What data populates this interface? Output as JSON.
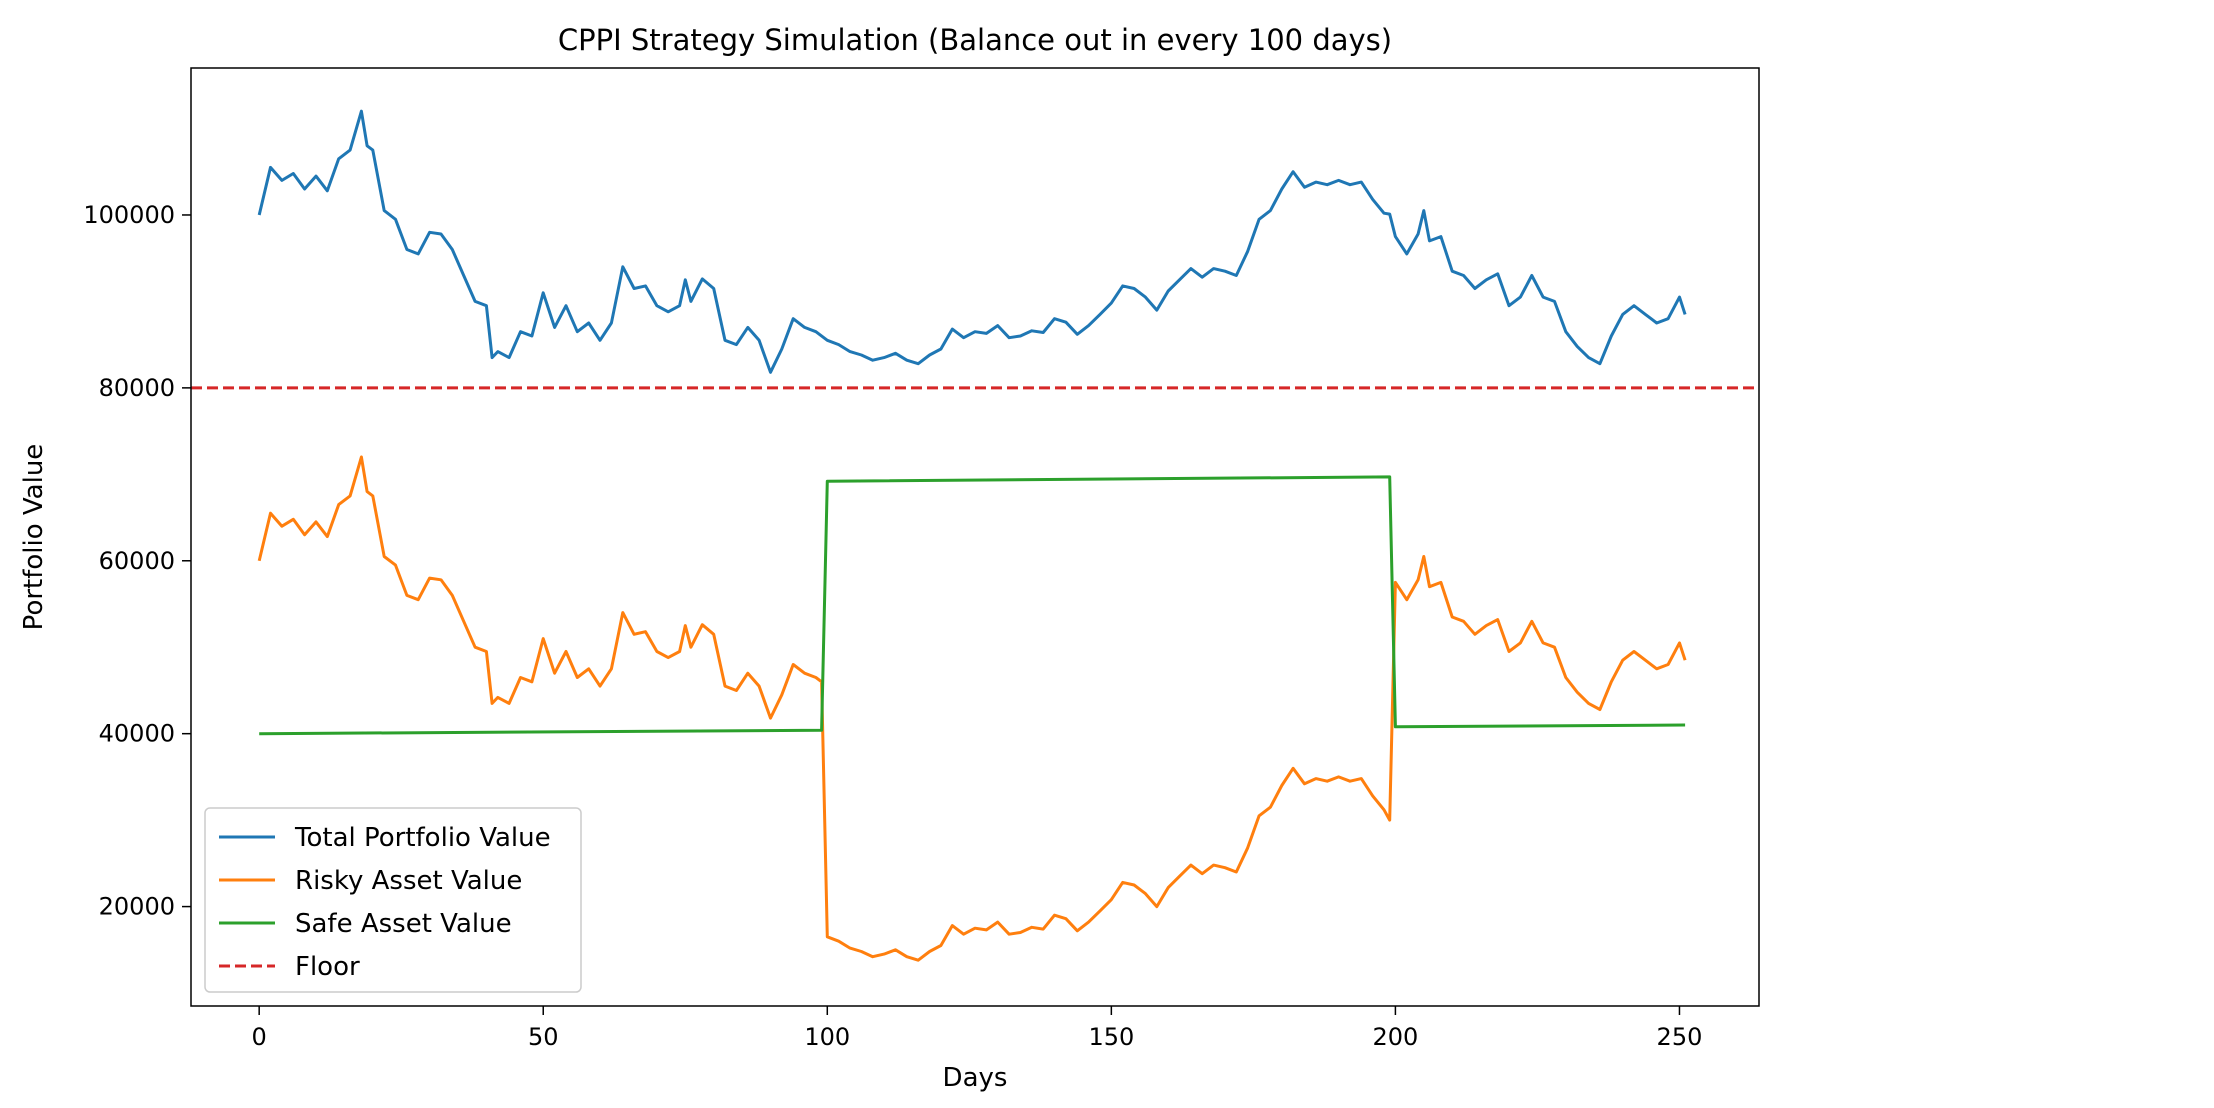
{
  "chart_data": {
    "type": "line",
    "title": "CPPI Strategy Simulation (Balance out in every 100 days)",
    "xlabel": "Days",
    "ylabel": "Portfolio Value",
    "xlim": [
      -12,
      264
    ],
    "ylim": [
      8500,
      117000
    ],
    "xticks": [
      0,
      50,
      100,
      150,
      200,
      250
    ],
    "yticks": [
      20000,
      40000,
      60000,
      80000,
      100000
    ],
    "grid": false,
    "legend_position": "lower-left",
    "floor": {
      "name": "Floor",
      "value": 80000,
      "color": "#d62728",
      "style": "dashed"
    },
    "series": [
      {
        "name": "Total Portfolio Value",
        "color": "#1f77b4",
        "points": [
          [
            0,
            100000
          ],
          [
            2,
            105500
          ],
          [
            4,
            104000
          ],
          [
            6,
            104800
          ],
          [
            8,
            103000
          ],
          [
            10,
            104500
          ],
          [
            12,
            102800
          ],
          [
            14,
            106500
          ],
          [
            16,
            107500
          ],
          [
            18,
            112000
          ],
          [
            19,
            108000
          ],
          [
            20,
            107500
          ],
          [
            22,
            100500
          ],
          [
            24,
            99500
          ],
          [
            26,
            96000
          ],
          [
            28,
            95500
          ],
          [
            30,
            98000
          ],
          [
            32,
            97800
          ],
          [
            34,
            96000
          ],
          [
            36,
            93000
          ],
          [
            38,
            90000
          ],
          [
            40,
            89500
          ],
          [
            41,
            83500
          ],
          [
            42,
            84200
          ],
          [
            44,
            83500
          ],
          [
            46,
            86500
          ],
          [
            48,
            86000
          ],
          [
            50,
            91000
          ],
          [
            52,
            87000
          ],
          [
            54,
            89500
          ],
          [
            56,
            86500
          ],
          [
            58,
            87500
          ],
          [
            60,
            85500
          ],
          [
            62,
            87500
          ],
          [
            64,
            94000
          ],
          [
            66,
            91500
          ],
          [
            68,
            91800
          ],
          [
            70,
            89500
          ],
          [
            72,
            88800
          ],
          [
            74,
            89500
          ],
          [
            75,
            92500
          ],
          [
            76,
            90000
          ],
          [
            78,
            92600
          ],
          [
            80,
            91500
          ],
          [
            82,
            85500
          ],
          [
            84,
            85000
          ],
          [
            86,
            87000
          ],
          [
            88,
            85500
          ],
          [
            90,
            81800
          ],
          [
            92,
            84500
          ],
          [
            94,
            88000
          ],
          [
            96,
            87000
          ],
          [
            98,
            86500
          ],
          [
            100,
            85500
          ],
          [
            102,
            85000
          ],
          [
            104,
            84200
          ],
          [
            106,
            83800
          ],
          [
            108,
            83200
          ],
          [
            110,
            83500
          ],
          [
            112,
            84000
          ],
          [
            114,
            83200
          ],
          [
            116,
            82800
          ],
          [
            118,
            83800
          ],
          [
            120,
            84500
          ],
          [
            122,
            86800
          ],
          [
            124,
            85800
          ],
          [
            126,
            86500
          ],
          [
            128,
            86300
          ],
          [
            130,
            87200
          ],
          [
            132,
            85800
          ],
          [
            134,
            86000
          ],
          [
            136,
            86600
          ],
          [
            138,
            86400
          ],
          [
            140,
            88000
          ],
          [
            142,
            87600
          ],
          [
            144,
            86200
          ],
          [
            146,
            87200
          ],
          [
            148,
            88500
          ],
          [
            150,
            89800
          ],
          [
            152,
            91800
          ],
          [
            154,
            91500
          ],
          [
            156,
            90500
          ],
          [
            158,
            89000
          ],
          [
            160,
            91200
          ],
          [
            162,
            92500
          ],
          [
            164,
            93800
          ],
          [
            166,
            92800
          ],
          [
            168,
            93800
          ],
          [
            170,
            93500
          ],
          [
            172,
            93000
          ],
          [
            174,
            95800
          ],
          [
            176,
            99500
          ],
          [
            178,
            100500
          ],
          [
            180,
            103000
          ],
          [
            182,
            105000
          ],
          [
            184,
            103200
          ],
          [
            186,
            103800
          ],
          [
            188,
            103500
          ],
          [
            190,
            104000
          ],
          [
            192,
            103500
          ],
          [
            194,
            103800
          ],
          [
            196,
            101800
          ],
          [
            198,
            100200
          ],
          [
            199,
            100100
          ],
          [
            200,
            97500
          ],
          [
            202,
            95500
          ],
          [
            204,
            97800
          ],
          [
            205,
            100500
          ],
          [
            206,
            97000
          ],
          [
            208,
            97500
          ],
          [
            210,
            93500
          ],
          [
            212,
            93000
          ],
          [
            214,
            91500
          ],
          [
            216,
            92500
          ],
          [
            218,
            93200
          ],
          [
            220,
            89500
          ],
          [
            222,
            90500
          ],
          [
            224,
            93000
          ],
          [
            226,
            90500
          ],
          [
            228,
            90000
          ],
          [
            230,
            86500
          ],
          [
            232,
            84800
          ],
          [
            234,
            83500
          ],
          [
            236,
            82800
          ],
          [
            238,
            86000
          ],
          [
            240,
            88500
          ],
          [
            242,
            89500
          ],
          [
            244,
            88500
          ],
          [
            246,
            87500
          ],
          [
            248,
            88000
          ],
          [
            250,
            90500
          ],
          [
            251,
            88500
          ]
        ]
      },
      {
        "name": "Risky Asset Value",
        "color": "#ff7f0e",
        "points": [
          [
            0,
            60000
          ],
          [
            2,
            65500
          ],
          [
            4,
            64000
          ],
          [
            6,
            64800
          ],
          [
            8,
            63000
          ],
          [
            10,
            64500
          ],
          [
            12,
            62800
          ],
          [
            14,
            66500
          ],
          [
            16,
            67500
          ],
          [
            18,
            72000
          ],
          [
            19,
            68000
          ],
          [
            20,
            67500
          ],
          [
            22,
            60500
          ],
          [
            24,
            59500
          ],
          [
            26,
            56000
          ],
          [
            28,
            55500
          ],
          [
            30,
            58000
          ],
          [
            32,
            57800
          ],
          [
            34,
            56000
          ],
          [
            36,
            53000
          ],
          [
            38,
            50000
          ],
          [
            40,
            49500
          ],
          [
            41,
            43500
          ],
          [
            42,
            44200
          ],
          [
            44,
            43500
          ],
          [
            46,
            46500
          ],
          [
            48,
            46000
          ],
          [
            50,
            51000
          ],
          [
            52,
            47000
          ],
          [
            54,
            49500
          ],
          [
            56,
            46500
          ],
          [
            58,
            47500
          ],
          [
            60,
            45500
          ],
          [
            62,
            47500
          ],
          [
            64,
            54000
          ],
          [
            66,
            51500
          ],
          [
            68,
            51800
          ],
          [
            70,
            49500
          ],
          [
            72,
            48800
          ],
          [
            74,
            49500
          ],
          [
            75,
            52500
          ],
          [
            76,
            50000
          ],
          [
            78,
            52600
          ],
          [
            80,
            51500
          ],
          [
            82,
            45500
          ],
          [
            84,
            45000
          ],
          [
            86,
            47000
          ],
          [
            88,
            45500
          ],
          [
            90,
            41800
          ],
          [
            92,
            44500
          ],
          [
            94,
            48000
          ],
          [
            96,
            47000
          ],
          [
            98,
            46500
          ],
          [
            99,
            46000
          ],
          [
            100,
            16500
          ],
          [
            102,
            16000
          ],
          [
            104,
            15200
          ],
          [
            106,
            14800
          ],
          [
            108,
            14200
          ],
          [
            110,
            14500
          ],
          [
            112,
            15000
          ],
          [
            114,
            14200
          ],
          [
            116,
            13800
          ],
          [
            118,
            14800
          ],
          [
            120,
            15500
          ],
          [
            122,
            17800
          ],
          [
            124,
            16800
          ],
          [
            126,
            17500
          ],
          [
            128,
            17300
          ],
          [
            130,
            18200
          ],
          [
            132,
            16800
          ],
          [
            134,
            17000
          ],
          [
            136,
            17600
          ],
          [
            138,
            17400
          ],
          [
            140,
            19000
          ],
          [
            142,
            18600
          ],
          [
            144,
            17200
          ],
          [
            146,
            18200
          ],
          [
            148,
            19500
          ],
          [
            150,
            20800
          ],
          [
            152,
            22800
          ],
          [
            154,
            22500
          ],
          [
            156,
            21500
          ],
          [
            158,
            20000
          ],
          [
            160,
            22200
          ],
          [
            162,
            23500
          ],
          [
            164,
            24800
          ],
          [
            166,
            23800
          ],
          [
            168,
            24800
          ],
          [
            170,
            24500
          ],
          [
            172,
            24000
          ],
          [
            174,
            26800
          ],
          [
            176,
            30500
          ],
          [
            178,
            31500
          ],
          [
            180,
            34000
          ],
          [
            182,
            36000
          ],
          [
            184,
            34200
          ],
          [
            186,
            34800
          ],
          [
            188,
            34500
          ],
          [
            190,
            35000
          ],
          [
            192,
            34500
          ],
          [
            194,
            34800
          ],
          [
            196,
            32800
          ],
          [
            198,
            31200
          ],
          [
            199,
            30000
          ],
          [
            200,
            57500
          ],
          [
            202,
            55500
          ],
          [
            204,
            57800
          ],
          [
            205,
            60500
          ],
          [
            206,
            57000
          ],
          [
            208,
            57500
          ],
          [
            210,
            53500
          ],
          [
            212,
            53000
          ],
          [
            214,
            51500
          ],
          [
            216,
            52500
          ],
          [
            218,
            53200
          ],
          [
            220,
            49500
          ],
          [
            222,
            50500
          ],
          [
            224,
            53000
          ],
          [
            226,
            50500
          ],
          [
            228,
            50000
          ],
          [
            230,
            46500
          ],
          [
            232,
            44800
          ],
          [
            234,
            43500
          ],
          [
            236,
            42800
          ],
          [
            238,
            46000
          ],
          [
            240,
            48500
          ],
          [
            242,
            49500
          ],
          [
            244,
            48500
          ],
          [
            246,
            47500
          ],
          [
            248,
            48000
          ],
          [
            250,
            50500
          ],
          [
            251,
            48500
          ]
        ]
      },
      {
        "name": "Safe Asset Value",
        "color": "#2ca02c",
        "points": [
          [
            0,
            40000
          ],
          [
            99,
            40400
          ],
          [
            100,
            69200
          ],
          [
            199,
            69700
          ],
          [
            200,
            40800
          ],
          [
            251,
            41000
          ]
        ]
      }
    ]
  }
}
